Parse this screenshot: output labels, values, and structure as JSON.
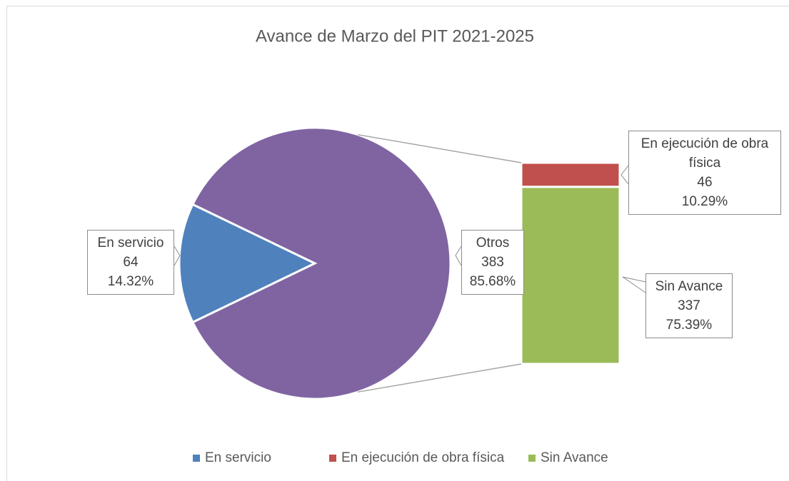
{
  "chart_data": {
    "type": "bar-of-pie",
    "title": "Avance de Marzo del PIT 2021-2025",
    "categories": [
      "En servicio",
      "En ejecución de obra física",
      "Sin Avance"
    ],
    "values": [
      64,
      46,
      337
    ],
    "percent_labels": [
      "14.32%",
      "10.29%",
      "75.39%"
    ],
    "colors": [
      "#4f81bd",
      "#c0504d",
      "#9bbb59"
    ],
    "secondary_count": 2,
    "other": {
      "name": "Otros",
      "value": 383,
      "percent_label": "85.68%",
      "color": "#8064a2"
    },
    "legend": "bottom"
  }
}
